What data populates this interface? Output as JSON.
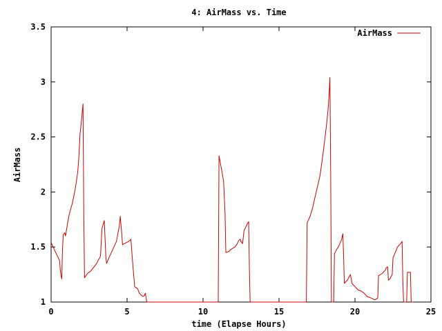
{
  "chart_data": {
    "type": "line",
    "title": "4: AirMass vs. Time",
    "xlabel": "time (Elapse Hours)",
    "ylabel": "AirMass",
    "xlim": [
      0,
      25
    ],
    "ylim": [
      1,
      3.5
    ],
    "xticks": [
      0,
      5,
      10,
      15,
      20,
      25
    ],
    "xtick_labels": [
      "0",
      "5",
      "10",
      "15",
      "20",
      "25"
    ],
    "yticks": [
      1,
      1.5,
      2,
      2.5,
      3,
      3.5
    ],
    "ytick_labels": [
      "1",
      "1.5",
      "2",
      "2.5",
      "3",
      "3.5"
    ],
    "grid": false,
    "legend": {
      "position": "top-right"
    },
    "series": [
      {
        "name": "AirMass",
        "color": "#cc0000",
        "points": [
          [
            0.0,
            1.54
          ],
          [
            0.3,
            1.45
          ],
          [
            0.55,
            1.38
          ],
          [
            0.6,
            1.3
          ],
          [
            0.65,
            1.24
          ],
          [
            0.7,
            1.21
          ],
          [
            0.75,
            1.48
          ],
          [
            0.8,
            1.61
          ],
          [
            0.9,
            1.63
          ],
          [
            0.95,
            1.6
          ],
          [
            1.1,
            1.73
          ],
          [
            1.2,
            1.8
          ],
          [
            1.4,
            1.9
          ],
          [
            1.55,
            2.0
          ],
          [
            1.65,
            2.08
          ],
          [
            1.75,
            2.18
          ],
          [
            1.8,
            2.26
          ],
          [
            1.85,
            2.38
          ],
          [
            1.9,
            2.52
          ],
          [
            2.0,
            2.65
          ],
          [
            2.05,
            2.73
          ],
          [
            2.1,
            2.8
          ],
          [
            2.15,
            1.8
          ],
          [
            2.2,
            1.22
          ],
          [
            2.4,
            1.26
          ],
          [
            2.6,
            1.28
          ],
          [
            3.0,
            1.35
          ],
          [
            3.1,
            1.38
          ],
          [
            3.2,
            1.4
          ],
          [
            3.25,
            1.42
          ],
          [
            3.35,
            1.67
          ],
          [
            3.5,
            1.74
          ],
          [
            3.6,
            1.42
          ],
          [
            3.65,
            1.35
          ],
          [
            3.8,
            1.4
          ],
          [
            4.3,
            1.55
          ],
          [
            4.5,
            1.7
          ],
          [
            4.55,
            1.78
          ],
          [
            4.65,
            1.62
          ],
          [
            4.7,
            1.52
          ],
          [
            4.8,
            1.53
          ],
          [
            5.1,
            1.55
          ],
          [
            5.25,
            1.57
          ],
          [
            5.4,
            1.3
          ],
          [
            5.5,
            1.14
          ],
          [
            5.7,
            1.12
          ],
          [
            5.8,
            1.08
          ],
          [
            5.95,
            1.06
          ],
          [
            6.05,
            1.05
          ],
          [
            6.15,
            1.06
          ],
          [
            6.2,
            1.08
          ],
          [
            6.25,
            1.04
          ],
          [
            6.3,
            1.0
          ],
          [
            10.9,
            1.0
          ],
          [
            11.0,
            1.0
          ],
          [
            11.05,
            2.33
          ],
          [
            11.25,
            2.18
          ],
          [
            11.35,
            2.1
          ],
          [
            11.45,
            1.8
          ],
          [
            11.5,
            1.45
          ],
          [
            11.7,
            1.46
          ],
          [
            11.85,
            1.48
          ],
          [
            12.1,
            1.5
          ],
          [
            12.25,
            1.53
          ],
          [
            12.35,
            1.56
          ],
          [
            12.45,
            1.57
          ],
          [
            12.5,
            1.55
          ],
          [
            12.6,
            1.53
          ],
          [
            12.7,
            1.65
          ],
          [
            12.95,
            1.72
          ],
          [
            13.0,
            1.73
          ],
          [
            13.05,
            1.3
          ],
          [
            13.1,
            1.0
          ],
          [
            16.8,
            1.0
          ],
          [
            16.85,
            1.72
          ],
          [
            17.05,
            1.78
          ],
          [
            17.2,
            1.85
          ],
          [
            17.35,
            1.94
          ],
          [
            17.5,
            2.03
          ],
          [
            17.7,
            2.15
          ],
          [
            17.9,
            2.35
          ],
          [
            18.05,
            2.52
          ],
          [
            18.15,
            2.64
          ],
          [
            18.25,
            2.78
          ],
          [
            18.3,
            2.9
          ],
          [
            18.35,
            3.04
          ],
          [
            18.4,
            2.2
          ],
          [
            18.45,
            1.0
          ],
          [
            18.6,
            1.0
          ],
          [
            18.65,
            1.44
          ],
          [
            18.8,
            1.48
          ],
          [
            18.9,
            1.5
          ],
          [
            19.0,
            1.53
          ],
          [
            19.1,
            1.56
          ],
          [
            19.2,
            1.62
          ],
          [
            19.25,
            1.42
          ],
          [
            19.3,
            1.17
          ],
          [
            19.5,
            1.2
          ],
          [
            19.7,
            1.25
          ],
          [
            19.8,
            1.17
          ],
          [
            20.0,
            1.14
          ],
          [
            20.2,
            1.11
          ],
          [
            20.4,
            1.1
          ],
          [
            20.6,
            1.08
          ],
          [
            20.8,
            1.05
          ],
          [
            21.0,
            1.04
          ],
          [
            21.3,
            1.02
          ],
          [
            21.45,
            1.03
          ],
          [
            21.5,
            1.04
          ],
          [
            21.55,
            1.24
          ],
          [
            21.8,
            1.26
          ],
          [
            22.0,
            1.29
          ],
          [
            22.05,
            1.31
          ],
          [
            22.15,
            1.32
          ],
          [
            22.2,
            1.2
          ],
          [
            22.3,
            1.21
          ],
          [
            22.45,
            1.25
          ],
          [
            22.5,
            1.4
          ],
          [
            22.65,
            1.45
          ],
          [
            22.8,
            1.5
          ],
          [
            23.0,
            1.53
          ],
          [
            23.1,
            1.55
          ],
          [
            23.15,
            1.2
          ],
          [
            23.2,
            1.0
          ],
          [
            23.4,
            1.0
          ],
          [
            23.45,
            1.27
          ],
          [
            23.65,
            1.27
          ],
          [
            23.7,
            1.0
          ],
          [
            23.85,
            1.0
          ]
        ]
      }
    ]
  }
}
